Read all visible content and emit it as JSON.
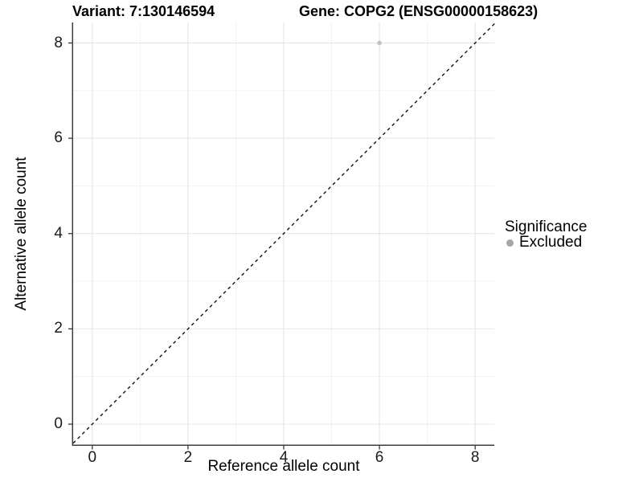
{
  "chart_data": {
    "type": "scatter",
    "title_left": "Variant: 7:130146594",
    "title_right": "Gene: COPG2 (ENSG00000158623)",
    "xlabel": "Reference allele count",
    "ylabel": "Alternative allele count",
    "xlim": [
      -0.4,
      8.4
    ],
    "ylim": [
      -0.43,
      8.43
    ],
    "x_ticks": [
      0,
      2,
      4,
      6,
      8
    ],
    "y_ticks": [
      0,
      2,
      4,
      6,
      8
    ],
    "x_minor": [
      1,
      3,
      5,
      7
    ],
    "y_minor": [
      1,
      3,
      5,
      7
    ],
    "grid": true,
    "legend_position": "right",
    "legend": {
      "title": "Significance",
      "entries": [
        {
          "label": "Excluded",
          "color": "#a6a6a6"
        }
      ]
    },
    "series": [
      {
        "name": "Excluded",
        "color": "#c1c1c1",
        "points": [
          {
            "x": 6,
            "y": 8
          }
        ]
      }
    ],
    "reference_line": {
      "type": "abline",
      "intercept": 0,
      "slope": 1,
      "style": "dashed",
      "color": "#111111"
    },
    "colors": {
      "major_grid": "#e4e4e4",
      "minor_grid": "#f1f1f1",
      "axis_line": "#3c3c3c",
      "tick_mark": "#333333",
      "background": "#ffffff"
    }
  }
}
